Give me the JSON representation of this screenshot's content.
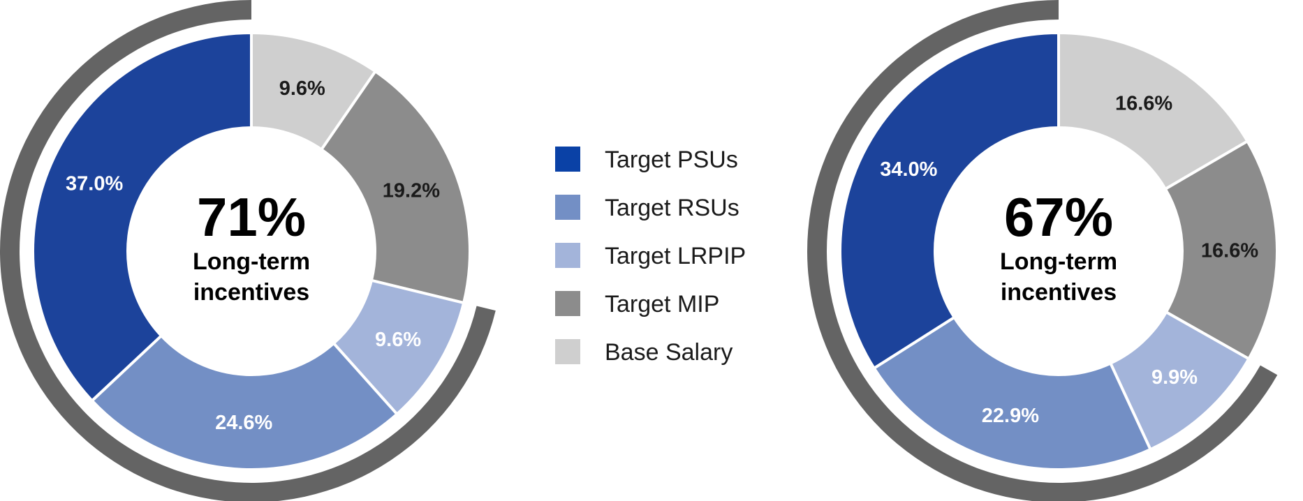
{
  "colors": {
    "Target PSUs": "#1c439b",
    "Target RSUs": "#738fc5",
    "Target LRPIP": "#a3b4da",
    "Target MIP": "#8c8c8c",
    "Base Salary": "#cfcfcf",
    "outer_arc": "#646464",
    "label_dark": "#1a1a1a",
    "label_light": "#ffffff"
  },
  "legend": {
    "items": [
      "Target PSUs",
      "Target RSUs",
      "Target LRPIP",
      "Target MIP",
      "Base Salary"
    ],
    "swatch_colors": [
      "#0a41a6",
      "#738fc5",
      "#a3b4da",
      "#8c8c8c",
      "#cfcfcf"
    ]
  },
  "chart_data": [
    {
      "type": "pie",
      "variant": "donut",
      "center_value": "71%",
      "center_label_lines": [
        "Long-term",
        "incentives"
      ],
      "outer_arc_covers": [
        "Target PSUs",
        "Target RSUs",
        "Target LRPIP"
      ],
      "slices": [
        {
          "name": "Base Salary",
          "value": 9.6,
          "label": "9.6%"
        },
        {
          "name": "Target MIP",
          "value": 19.2,
          "label": "19.2%"
        },
        {
          "name": "Target LRPIP",
          "value": 9.6,
          "label": "9.6%"
        },
        {
          "name": "Target RSUs",
          "value": 24.6,
          "label": "24.6%"
        },
        {
          "name": "Target PSUs",
          "value": 37.0,
          "label": "37.0%"
        }
      ]
    },
    {
      "type": "pie",
      "variant": "donut",
      "center_value": "67%",
      "center_label_lines": [
        "Long-term",
        "incentives"
      ],
      "outer_arc_covers": [
        "Target PSUs",
        "Target RSUs",
        "Target LRPIP"
      ],
      "slices": [
        {
          "name": "Base Salary",
          "value": 16.6,
          "label": "16.6%"
        },
        {
          "name": "Target MIP",
          "value": 16.6,
          "label": "16.6%"
        },
        {
          "name": "Target LRPIP",
          "value": 9.9,
          "label": "9.9%"
        },
        {
          "name": "Target RSUs",
          "value": 22.9,
          "label": "22.9%"
        },
        {
          "name": "Target PSUs",
          "value": 34.0,
          "label": "34.0%"
        }
      ]
    }
  ]
}
